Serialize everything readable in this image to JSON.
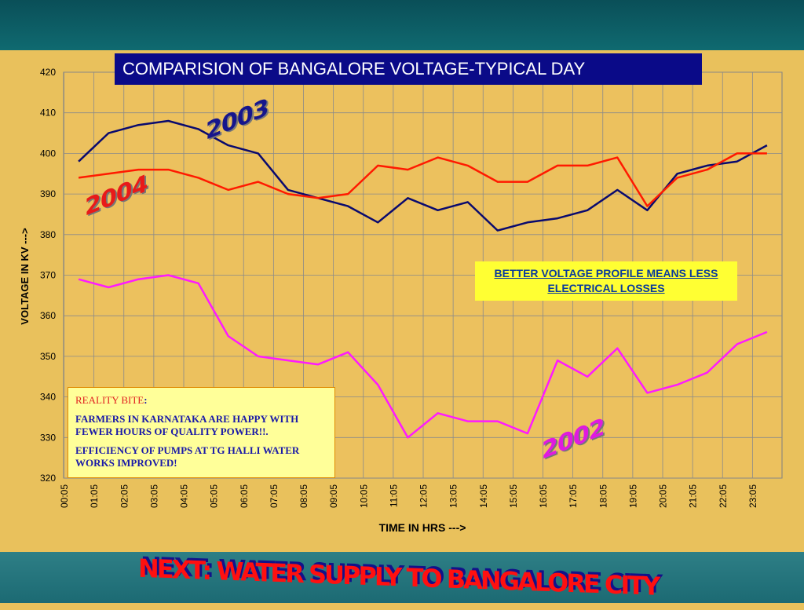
{
  "slide": {
    "title": "COMPARISION OF BANGALORE VOLTAGE-TYPICAL DAY",
    "note": "BETTER VOLTAGE PROFILE MEANS LESS ELECTRICAL LOSSES",
    "reality_heading": "REALITY BITE",
    "reality_colon": ":",
    "reality_line1": "FARMERS IN KARNATAKA ARE HAPPY WITH FEWER HOURS OF QUALITY POWER!!.",
    "reality_line2": "EFFICIENCY OF PUMPS AT TG HALLI WATER WORKS IMPROVED!",
    "label_2003": "2003",
    "label_2004": "2004",
    "label_2002": "2002",
    "banner": "NEXT: WATER SUPPLY TO BANGALORE CITY"
  },
  "colors": {
    "series_2003": "#0a0a6e",
    "series_2004": "#ff1a00",
    "series_2002": "#ff1aff",
    "label_2003": "#16168c",
    "label_2004": "#e81a1a",
    "label_2002": "#e01ae0"
  },
  "chart_data": {
    "type": "line",
    "xlabel": "TIME IN HRS --->",
    "ylabel": "VOLTAGE IN KV --->",
    "ylim": [
      320,
      420
    ],
    "yticks": [
      320,
      330,
      340,
      350,
      360,
      370,
      380,
      390,
      400,
      410,
      420
    ],
    "x": [
      "00:05",
      "01:05",
      "02:05",
      "03:05",
      "04:05",
      "05:05",
      "06:05",
      "07:05",
      "08:05",
      "09:05",
      "10:05",
      "11:05",
      "12:05",
      "13:05",
      "14:05",
      "15:05",
      "16:05",
      "17:05",
      "18:05",
      "19:05",
      "20:05",
      "21:05",
      "22:05",
      "23:05"
    ],
    "grid": true,
    "legend": "none",
    "series": [
      {
        "name": "2003",
        "values": [
          398,
          405,
          407,
          408,
          406,
          402,
          400,
          391,
          389,
          387,
          383,
          389,
          386,
          388,
          381,
          383,
          384,
          386,
          391,
          386,
          395,
          397,
          398,
          402
        ]
      },
      {
        "name": "2004",
        "values": [
          394,
          395,
          396,
          396,
          394,
          391,
          393,
          390,
          389,
          390,
          397,
          396,
          399,
          397,
          393,
          393,
          397,
          397,
          399,
          387,
          394,
          396,
          400,
          400
        ]
      },
      {
        "name": "2002",
        "values": [
          369,
          367,
          369,
          370,
          368,
          355,
          350,
          349,
          348,
          351,
          343,
          330,
          336,
          334,
          334,
          331,
          349,
          345,
          352,
          341,
          343,
          346,
          353,
          356
        ]
      }
    ]
  }
}
